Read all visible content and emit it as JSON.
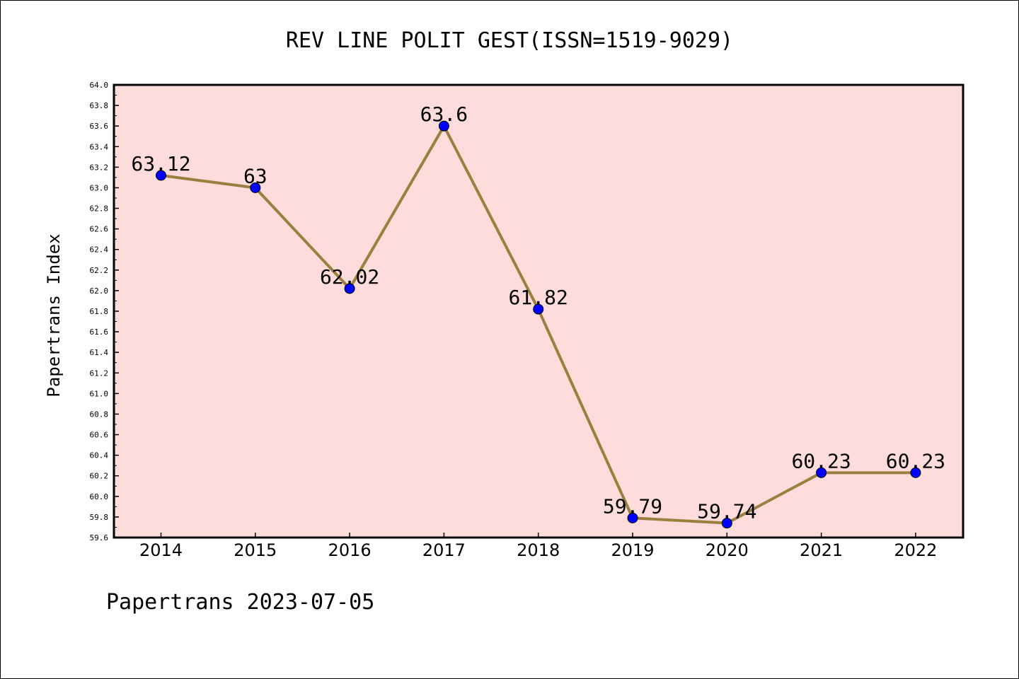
{
  "footer_text": "Papertrans 2023-07-05",
  "chart_data": {
    "type": "line",
    "title": "REV LINE POLIT GEST(ISSN=1519-9029)",
    "xlabel": "",
    "ylabel": "Papertrans Index",
    "categories": [
      "2014",
      "2015",
      "2016",
      "2017",
      "2018",
      "2019",
      "2020",
      "2021",
      "2022"
    ],
    "series": [
      {
        "values": [
          63.12,
          63,
          62.02,
          63.6,
          61.82,
          59.79,
          59.74,
          60.23,
          60.23
        ],
        "data_labels": [
          "63.12",
          "63",
          "62.02",
          "63.6",
          "61.82",
          "59.79",
          "59.74",
          "60.23",
          "60.23"
        ]
      }
    ],
    "ylim": [
      59.6,
      64.0
    ],
    "yticks": [
      "59.6",
      "59.8",
      "60.0",
      "60.2",
      "60.4",
      "60.6",
      "60.8",
      "61.0",
      "61.2",
      "61.4",
      "61.6",
      "61.8",
      "62.0",
      "62.2",
      "62.4",
      "62.6",
      "62.8",
      "63.0",
      "63.2",
      "63.4",
      "63.6",
      "63.8",
      "64.0"
    ],
    "grid": false,
    "colors": {
      "plot_background": "#ffdcdc",
      "line": "#9b7f3f",
      "marker": "#0000ff"
    }
  }
}
